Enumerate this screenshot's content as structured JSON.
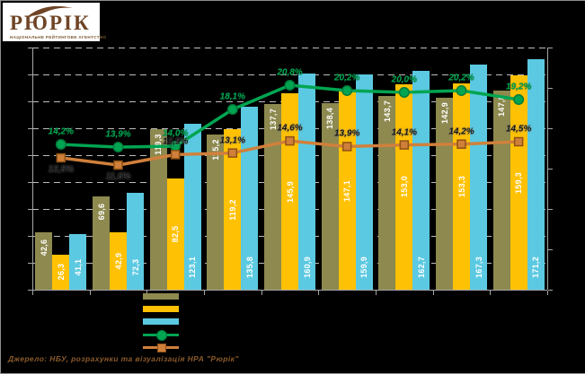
{
  "logo": {
    "brand": "РЮРІК",
    "tagline": "НАЦІОНАЛЬНЕ РЕЙТИНГОВЕ АГЕНТСТВО"
  },
  "footer": {
    "source": "Джерело: НБУ, розрахунки та візуалізація НРА \"Рюрік\""
  },
  "chart_data": {
    "type": "bar",
    "title": "",
    "n_groups": 9,
    "categories": [
      "",
      "",
      "",
      "",
      "",
      "",
      "",
      "",
      ""
    ],
    "axis_tick_labels_visible": false,
    "grid": "horizontal-dashed",
    "background": "#000000",
    "ylim_left": [
      0,
      180
    ],
    "series": [
      {
        "name": "olive-bars",
        "type": "bar",
        "color": "#8d894f",
        "values": [
          42.6,
          69.6,
          119.3,
          115.2,
          137.7,
          138.4,
          143.7,
          142.9,
          147.8
        ],
        "labels": [
          "42,6",
          "69,6",
          "119,3",
          "115,2",
          "137,7",
          "138,4",
          "143,7",
          "142,9",
          "147,8"
        ]
      },
      {
        "name": "gold-bars",
        "type": "bar",
        "color": "#ffc103",
        "values": [
          26.3,
          42.9,
          82.5,
          119.2,
          145.9,
          147.1,
          153.0,
          153.3,
          159.3
        ],
        "labels": [
          "26,3",
          "42,9",
          "82,5",
          "119,2",
          "145,9",
          "147,1",
          "153,0",
          "153,3",
          "159,3"
        ]
      },
      {
        "name": "cyan-bars",
        "type": "bar",
        "color": "#5bc9e1",
        "values": [
          41.1,
          72.3,
          123.1,
          135.8,
          160.9,
          159.9,
          162.7,
          167.3,
          171.2
        ],
        "labels": [
          "41,1",
          "72,3",
          "123,1",
          "135,8",
          "160,9",
          "159,9",
          "162,7",
          "167,3",
          "171,2"
        ]
      },
      {
        "name": "green-percent-line",
        "type": "line",
        "marker": "circle",
        "color": "#00a551",
        "marker_stroke": "#007c3c",
        "values": [
          14.2,
          13.9,
          14.0,
          18.1,
          20.8,
          20.2,
          20.0,
          20.2,
          19.2
        ],
        "labels": [
          "14,2%",
          "13,9%",
          "14,0%",
          "18,1%",
          "20,8%",
          "20,2%",
          "20,0%",
          "20,2%",
          "19,2%"
        ]
      },
      {
        "name": "orange-percent-line",
        "type": "line",
        "marker": "square",
        "color": "#d0803b",
        "marker_stroke": "#8f5214",
        "values": [
          12.5,
          11.6,
          12.9,
          13.1,
          14.6,
          13.9,
          14.1,
          14.2,
          14.5
        ],
        "labels": [
          "12,5%",
          "11,6%",
          "12,9%",
          "13,1%",
          "14,6%",
          "13,9%",
          "14,1%",
          "14,2%",
          "14,5%"
        ]
      }
    ],
    "legend": {
      "position": "bottom-left",
      "labels_visible": false,
      "entries": [
        "olive-bar-swatch",
        "gold-bar-swatch",
        "cyan-bar-swatch",
        "green-line-swatch",
        "orange-line-swatch"
      ]
    }
  }
}
